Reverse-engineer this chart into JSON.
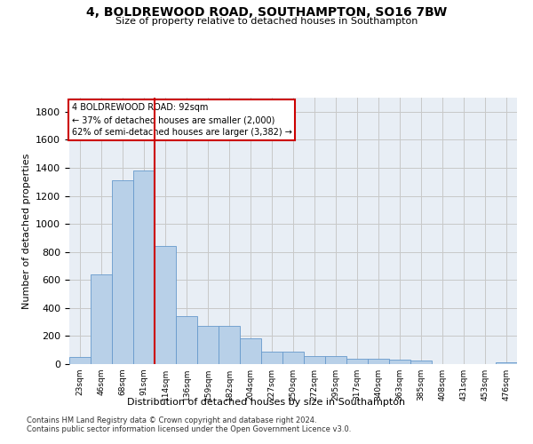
{
  "title1": "4, BOLDREWOOD ROAD, SOUTHAMPTON, SO16 7BW",
  "title2": "Size of property relative to detached houses in Southampton",
  "xlabel": "Distribution of detached houses by size in Southampton",
  "ylabel": "Number of detached properties",
  "categories": [
    "23sqm",
    "46sqm",
    "68sqm",
    "91sqm",
    "114sqm",
    "136sqm",
    "159sqm",
    "182sqm",
    "204sqm",
    "227sqm",
    "250sqm",
    "272sqm",
    "295sqm",
    "317sqm",
    "340sqm",
    "363sqm",
    "385sqm",
    "408sqm",
    "431sqm",
    "453sqm",
    "476sqm"
  ],
  "values": [
    50,
    640,
    1310,
    1380,
    840,
    340,
    270,
    270,
    185,
    90,
    90,
    60,
    60,
    35,
    35,
    30,
    25,
    0,
    0,
    0,
    15
  ],
  "bar_color": "#b8d0e8",
  "bar_edge_color": "#6699cc",
  "grid_color": "#c8c8c8",
  "vline_color": "#cc0000",
  "vline_pos": 3.5,
  "annotation_text": "4 BOLDREWOOD ROAD: 92sqm\n← 37% of detached houses are smaller (2,000)\n62% of semi-detached houses are larger (3,382) →",
  "annotation_box_color": "#cc0000",
  "ylim": [
    0,
    1900
  ],
  "yticks": [
    0,
    200,
    400,
    600,
    800,
    1000,
    1200,
    1400,
    1600,
    1800
  ],
  "footer1": "Contains HM Land Registry data © Crown copyright and database right 2024.",
  "footer2": "Contains public sector information licensed under the Open Government Licence v3.0.",
  "bg_color": "#e8eef5"
}
